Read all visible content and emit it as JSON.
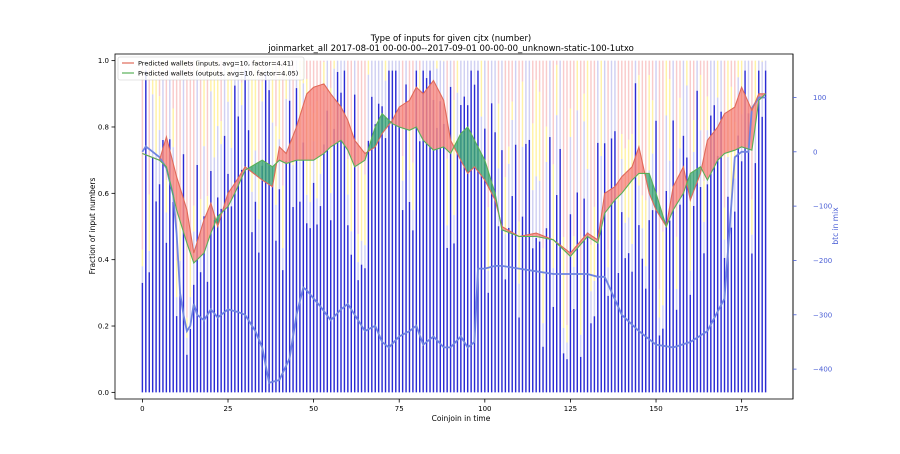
{
  "chart_data": {
    "type": "bar",
    "title": "Type of inputs for given cjtx (number)",
    "subtitle": "joinmarket_all 2017-08-01 00-00-00--2017-09-01 00-00-00_unknown-static-100-1utxo",
    "xlabel": "Coinjoin in time",
    "ylabel": "Fraction of input numbers",
    "y2label": "btc in mix",
    "xlim": [
      -8,
      190
    ],
    "ylim": [
      -0.02,
      1.02
    ],
    "y2lim": [
      -455,
      180
    ],
    "x_ticks": [
      0,
      25,
      50,
      75,
      100,
      125,
      150,
      175
    ],
    "y_ticks": [
      0.0,
      0.2,
      0.4,
      0.6,
      0.8,
      1.0
    ],
    "y2_ticks": [
      100,
      0,
      -100,
      -200,
      -300,
      -400
    ],
    "legend_position": "upper-left",
    "legend": [
      "Predicted wallets (inputs, avg=10, factor=4.41)",
      "Predicted wallets (outputs, avg=10, factor=4.05)"
    ],
    "colors": {
      "inputs_line": "#e06a5a",
      "inputs_fill": "#f5827a",
      "outputs_line": "#58b058",
      "outputs_fill": "#3aa373",
      "bars_main": "#2b2bd4",
      "bars_light": "#c8c8f0",
      "bars_yellow": "#ffee88",
      "bars_pink": "#f4a0a0",
      "btc_line": "#6f84e0",
      "y2_axis": "#4b5fd6"
    },
    "series": [
      {
        "name": "Predicted wallets (inputs, avg=10, factor=4.41)",
        "x": [
          0,
          5,
          7,
          10,
          13,
          15,
          18,
          20,
          22,
          25,
          27,
          30,
          35,
          38,
          40,
          42,
          45,
          48,
          50,
          53,
          55,
          58,
          60,
          62,
          65,
          68,
          70,
          73,
          75,
          78,
          80,
          82,
          85,
          88,
          90,
          93,
          95,
          97,
          100,
          103,
          105,
          110,
          115,
          120,
          125,
          130,
          133,
          135,
          138,
          140,
          143,
          145,
          148,
          150,
          153,
          155,
          158,
          160,
          163,
          165,
          168,
          170,
          173,
          175,
          178,
          180,
          182
        ],
        "y": [
          0.72,
          0.7,
          0.77,
          0.65,
          0.55,
          0.42,
          0.52,
          0.57,
          0.5,
          0.6,
          0.63,
          0.68,
          0.64,
          0.62,
          0.74,
          0.72,
          0.8,
          0.9,
          0.92,
          0.93,
          0.9,
          0.86,
          0.82,
          0.76,
          0.72,
          0.74,
          0.78,
          0.82,
          0.86,
          0.88,
          0.92,
          0.9,
          0.94,
          0.88,
          0.76,
          0.7,
          0.66,
          0.68,
          0.64,
          0.58,
          0.5,
          0.47,
          0.48,
          0.46,
          0.42,
          0.48,
          0.46,
          0.6,
          0.62,
          0.65,
          0.68,
          0.74,
          0.6,
          0.55,
          0.5,
          0.62,
          0.68,
          0.58,
          0.66,
          0.76,
          0.8,
          0.84,
          0.86,
          0.92,
          0.85,
          0.9,
          0.9
        ]
      },
      {
        "name": "Predicted wallets (outputs, avg=10, factor=4.05)",
        "x": [
          0,
          5,
          7,
          10,
          13,
          15,
          18,
          20,
          22,
          25,
          27,
          30,
          35,
          38,
          40,
          42,
          45,
          48,
          50,
          53,
          55,
          58,
          60,
          62,
          65,
          68,
          70,
          73,
          75,
          78,
          80,
          82,
          85,
          88,
          90,
          93,
          95,
          97,
          100,
          103,
          105,
          110,
          115,
          120,
          125,
          130,
          133,
          135,
          138,
          140,
          143,
          145,
          148,
          150,
          153,
          155,
          158,
          160,
          163,
          165,
          168,
          170,
          173,
          175,
          178,
          180,
          182
        ],
        "y": [
          0.72,
          0.7,
          0.68,
          0.55,
          0.45,
          0.39,
          0.42,
          0.48,
          0.53,
          0.56,
          0.6,
          0.67,
          0.7,
          0.68,
          0.7,
          0.69,
          0.7,
          0.7,
          0.7,
          0.72,
          0.74,
          0.76,
          0.73,
          0.68,
          0.7,
          0.8,
          0.84,
          0.81,
          0.8,
          0.79,
          0.8,
          0.76,
          0.73,
          0.74,
          0.72,
          0.78,
          0.8,
          0.76,
          0.7,
          0.6,
          0.49,
          0.47,
          0.47,
          0.46,
          0.41,
          0.47,
          0.45,
          0.54,
          0.58,
          0.6,
          0.64,
          0.66,
          0.66,
          0.6,
          0.5,
          0.55,
          0.6,
          0.66,
          0.68,
          0.64,
          0.7,
          0.72,
          0.73,
          0.74,
          0.73,
          0.88,
          0.9
        ]
      },
      {
        "name": "",
        "axis": "right",
        "x": [
          0,
          1,
          3,
          5,
          7,
          9,
          10,
          11,
          12,
          13,
          14,
          15,
          16,
          18,
          20,
          22,
          25,
          28,
          30,
          33,
          35,
          37,
          40,
          43,
          45,
          47,
          48,
          50,
          52,
          55,
          58,
          60,
          62,
          65,
          68,
          70,
          72,
          75,
          78,
          80,
          82,
          85,
          88,
          90,
          93,
          95,
          97,
          98,
          100,
          103,
          105,
          110,
          115,
          120,
          125,
          130,
          133,
          135,
          140,
          145,
          150,
          155,
          160,
          165,
          170,
          173,
          175,
          177,
          178,
          180,
          182
        ],
        "y": [
          0,
          10,
          0,
          -10,
          -30,
          -80,
          -150,
          -260,
          -300,
          -330,
          -320,
          -280,
          -300,
          -310,
          -290,
          -305,
          -290,
          -295,
          -300,
          -330,
          -360,
          -425,
          -420,
          -380,
          -300,
          -250,
          -255,
          -270,
          -285,
          -310,
          -290,
          -280,
          -300,
          -330,
          -320,
          -350,
          -360,
          -340,
          -330,
          -320,
          -355,
          -340,
          -360,
          -360,
          -340,
          -360,
          -350,
          -215,
          -215,
          -210,
          -210,
          -215,
          -220,
          -225,
          -225,
          -225,
          -230,
          -230,
          -300,
          -330,
          -355,
          -360,
          -350,
          -330,
          -270,
          -10,
          0,
          0,
          80,
          100,
          100
        ]
      }
    ]
  }
}
